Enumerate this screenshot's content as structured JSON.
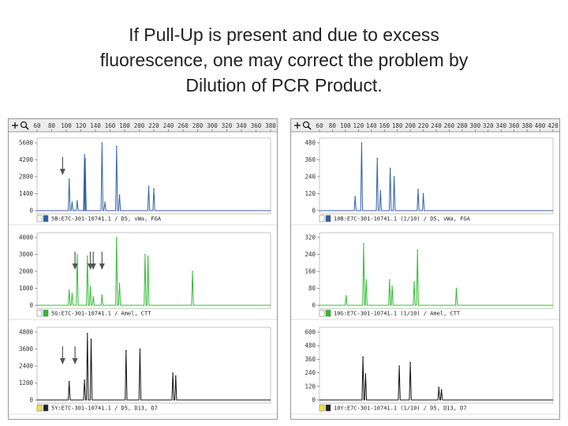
{
  "title_lines": [
    "If Pull-Up is present and due to excess",
    "fluorescence, one may correct the problem by",
    "Dilution of PCR Product."
  ],
  "chart_data": [
    {
      "type": "line",
      "panel": "left",
      "x_ticks": [
        "60",
        "80",
        "100",
        "120",
        "140",
        "160",
        "180",
        "200",
        "220",
        "240",
        "260",
        "280",
        "300",
        "320",
        "340",
        "360",
        "380"
      ],
      "xlim": [
        60,
        380
      ],
      "channels": [
        {
          "name": "5B:E7C-301-10741.1 / D5, vWa, FGA",
          "color": "#3060a8",
          "yticks": [
            "5600",
            "4200",
            "2800",
            "1400",
            "0"
          ],
          "ylim": [
            0,
            5600
          ],
          "peaks": [
            {
              "x": 104,
              "y": 2600
            },
            {
              "x": 108,
              "y": 700
            },
            {
              "x": 115,
              "y": 800
            },
            {
              "x": 125,
              "y": 4600
            },
            {
              "x": 126,
              "y": 4300
            },
            {
              "x": 149,
              "y": 5600
            },
            {
              "x": 153,
              "y": 700
            },
            {
              "x": 169,
              "y": 5300
            },
            {
              "x": 173,
              "y": 1300
            },
            {
              "x": 213,
              "y": 2000
            },
            {
              "x": 220,
              "y": 1800
            }
          ],
          "arrows": [
            95
          ]
        },
        {
          "name": "5G:E7C-301-10741.1 / Amel, CTT",
          "color": "#33bb33",
          "yticks": [
            "4000",
            "3000",
            "2000",
            "1000",
            "0"
          ],
          "ylim": [
            0,
            4000
          ],
          "peaks": [
            {
              "x": 104,
              "y": 900
            },
            {
              "x": 108,
              "y": 700
            },
            {
              "x": 115,
              "y": 3000
            },
            {
              "x": 129,
              "y": 2900
            },
            {
              "x": 133,
              "y": 1100
            },
            {
              "x": 137,
              "y": 500
            },
            {
              "x": 149,
              "y": 600
            },
            {
              "x": 169,
              "y": 4000
            },
            {
              "x": 173,
              "y": 1300
            },
            {
              "x": 208,
              "y": 3000
            },
            {
              "x": 212,
              "y": 2900
            },
            {
              "x": 273,
              "y": 2000
            }
          ],
          "arrows": [
            112,
            133,
            137,
            149
          ]
        },
        {
          "name": "5Y:E7C-301-10741.1 / D5, D13, D7",
          "color": "#111111",
          "yticks": [
            "4800",
            "3600",
            "2400",
            "1200",
            "0"
          ],
          "ylim": [
            0,
            4800
          ],
          "peaks": [
            {
              "x": 104,
              "y": 1300
            },
            {
              "x": 125,
              "y": 1400
            },
            {
              "x": 129,
              "y": 4700
            },
            {
              "x": 134,
              "y": 4300
            },
            {
              "x": 182,
              "y": 3500
            },
            {
              "x": 201,
              "y": 3600
            },
            {
              "x": 246,
              "y": 1900
            },
            {
              "x": 250,
              "y": 1700
            }
          ],
          "arrows": [
            95,
            112
          ]
        }
      ]
    },
    {
      "type": "line",
      "panel": "right",
      "x_ticks": [
        "60",
        "80",
        "100",
        "120",
        "140",
        "160",
        "180",
        "200",
        "220",
        "240",
        "260",
        "280",
        "300",
        "320",
        "340",
        "360",
        "380",
        "400",
        "420"
      ],
      "xlim": [
        60,
        420
      ],
      "channels": [
        {
          "name": "10B:E7C-301-10741.1 (1/10) / D5, vWa, FGA",
          "color": "#3060a8",
          "yticks": [
            "480",
            "360",
            "240",
            "120",
            "0"
          ],
          "ylim": [
            0,
            480
          ],
          "peaks": [
            {
              "x": 115,
              "y": 100
            },
            {
              "x": 125,
              "y": 480
            },
            {
              "x": 149,
              "y": 370
            },
            {
              "x": 154,
              "y": 140
            },
            {
              "x": 169,
              "y": 300
            },
            {
              "x": 175,
              "y": 240
            },
            {
              "x": 212,
              "y": 150
            },
            {
              "x": 220,
              "y": 120
            }
          ],
          "arrows": []
        },
        {
          "name": "10G:E7C-301-10741.1 (1/10) / Amel, CTT",
          "color": "#33bb33",
          "yticks": [
            "320",
            "240",
            "160",
            "80",
            "0"
          ],
          "ylim": [
            0,
            320
          ],
          "peaks": [
            {
              "x": 101,
              "y": 45
            },
            {
              "x": 128,
              "y": 290
            },
            {
              "x": 132,
              "y": 120
            },
            {
              "x": 168,
              "y": 120
            },
            {
              "x": 172,
              "y": 90
            },
            {
              "x": 206,
              "y": 110
            },
            {
              "x": 211,
              "y": 260
            },
            {
              "x": 271,
              "y": 80
            }
          ],
          "arrows": []
        },
        {
          "name": "10Y:E7C-301-10741.1 (1/10) / D5, D13, D7",
          "color": "#111111",
          "yticks": [
            "600",
            "480",
            "360",
            "240",
            "120",
            "0"
          ],
          "ylim": [
            0,
            600
          ],
          "peaks": [
            {
              "x": 127,
              "y": 380
            },
            {
              "x": 131,
              "y": 230
            },
            {
              "x": 183,
              "y": 300
            },
            {
              "x": 200,
              "y": 330
            },
            {
              "x": 244,
              "y": 110
            },
            {
              "x": 248,
              "y": 90
            }
          ],
          "arrows": []
        }
      ]
    }
  ]
}
